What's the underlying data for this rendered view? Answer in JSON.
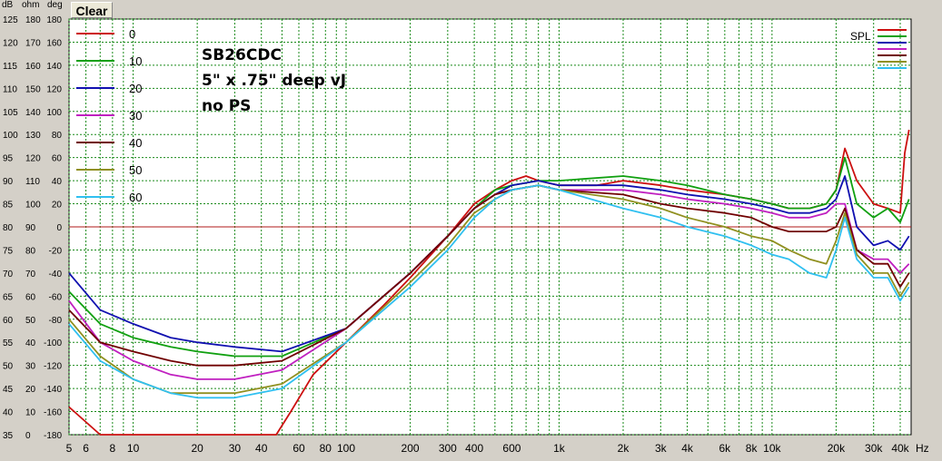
{
  "header": {
    "col_db": "dB",
    "col_ohm": "ohm",
    "col_deg": "deg",
    "clear_label": "Clear"
  },
  "annotation": [
    "SB26CDC",
    "5\" x .75\" deep vJ",
    "no PS"
  ],
  "spl_label": "SPL",
  "chart_data": {
    "type": "line",
    "xscale": "log",
    "xlim": [
      5,
      45000
    ],
    "ylim": [
      35,
      125
    ],
    "y2lim": [
      0,
      180
    ],
    "y3lim": [
      -180,
      180
    ],
    "grid": true,
    "legend_position": "top-left",
    "yticks_db": [
      "125",
      "120",
      "115",
      "110",
      "105",
      "100",
      "95",
      "90",
      "85",
      "80",
      "75",
      "70",
      "65",
      "60",
      "55",
      "50",
      "45",
      "40",
      "35"
    ],
    "yticks_ohm": [
      "180",
      "170",
      "160",
      "150",
      "140",
      "130",
      "120",
      "110",
      "100",
      "90",
      "80",
      "70",
      "60",
      "50",
      "40",
      "30",
      "20",
      "10",
      "0"
    ],
    "yticks_deg": [
      "180",
      "160",
      "140",
      "120",
      "100",
      "80",
      "60",
      "40",
      "20",
      "0",
      "-20",
      "-40",
      "-60",
      "-80",
      "-100",
      "-120",
      "-140",
      "-160",
      "-180"
    ],
    "xticks": [
      {
        "v": 5,
        "label": "5"
      },
      {
        "v": 6,
        "label": "6"
      },
      {
        "v": 8,
        "label": "8"
      },
      {
        "v": 10,
        "label": "10"
      },
      {
        "v": 20,
        "label": "20"
      },
      {
        "v": 30,
        "label": "30"
      },
      {
        "v": 40,
        "label": "40"
      },
      {
        "v": 60,
        "label": "60"
      },
      {
        "v": 80,
        "label": "80"
      },
      {
        "v": 100,
        "label": "100"
      },
      {
        "v": 200,
        "label": "200"
      },
      {
        "v": 300,
        "label": "300"
      },
      {
        "v": 400,
        "label": "400"
      },
      {
        "v": 600,
        "label": "600"
      },
      {
        "v": 1000,
        "label": "1k"
      },
      {
        "v": 2000,
        "label": "2k"
      },
      {
        "v": 3000,
        "label": "3k"
      },
      {
        "v": 4000,
        "label": "4k"
      },
      {
        "v": 6000,
        "label": "6k"
      },
      {
        "v": 8000,
        "label": "8k"
      },
      {
        "v": 10000,
        "label": "10k"
      },
      {
        "v": 20000,
        "label": "20k"
      },
      {
        "v": 30000,
        "label": "30k"
      },
      {
        "v": 40000,
        "label": "40k"
      }
    ],
    "x_unit": "Hz",
    "reference_line_db": 80,
    "series": [
      {
        "name": "0",
        "color": "#cc1010",
        "x": [
          5,
          7,
          10,
          20,
          30,
          47,
          55,
          70,
          100,
          150,
          200,
          300,
          400,
          500,
          600,
          700,
          800,
          1000,
          1500,
          2000,
          3000,
          4000,
          6000,
          8000,
          10000,
          12000,
          15000,
          18000,
          20000,
          22000,
          25000,
          30000,
          35000,
          40000,
          42000,
          44000
        ],
        "y": [
          41,
          35,
          35,
          35,
          35,
          35,
          40,
          48,
          55,
          63,
          69,
          78,
          85,
          88,
          90,
          91,
          90,
          89,
          89,
          90,
          89,
          88,
          87,
          86,
          85,
          84,
          84,
          85,
          88,
          97,
          90,
          85,
          84,
          83,
          96,
          101
        ]
      },
      {
        "name": "10",
        "color": "#10a010",
        "x": [
          5,
          7,
          10,
          15,
          20,
          30,
          50,
          100,
          200,
          300,
          400,
          500,
          600,
          800,
          1000,
          2000,
          3000,
          4000,
          6000,
          8000,
          10000,
          12000,
          15000,
          18000,
          20000,
          22000,
          25000,
          30000,
          35000,
          40000,
          44000
        ],
        "y": [
          66,
          59,
          56,
          54,
          53,
          52,
          52,
          58,
          70,
          78,
          84,
          88,
          89,
          90,
          90,
          91,
          90,
          89,
          87,
          86,
          85,
          84,
          84,
          85,
          88,
          95,
          85,
          82,
          84,
          81,
          86
        ]
      },
      {
        "name": "20",
        "color": "#1010b0",
        "x": [
          5,
          7,
          10,
          15,
          20,
          30,
          50,
          100,
          200,
          300,
          400,
          500,
          600,
          800,
          1000,
          2000,
          3000,
          4000,
          6000,
          8000,
          10000,
          12000,
          15000,
          18000,
          20000,
          22000,
          25000,
          30000,
          35000,
          40000,
          44000
        ],
        "y": [
          70,
          62,
          59,
          56,
          55,
          54,
          53,
          58,
          70,
          78,
          84,
          87,
          89,
          90,
          89,
          89,
          88,
          87,
          86,
          85,
          84,
          83,
          83,
          84,
          86,
          91,
          80,
          76,
          77,
          75,
          78
        ]
      },
      {
        "name": "30",
        "color": "#c020c0",
        "x": [
          5,
          7,
          10,
          15,
          20,
          30,
          50,
          100,
          200,
          300,
          400,
          500,
          600,
          800,
          1000,
          2000,
          3000,
          4000,
          6000,
          8000,
          10000,
          12000,
          15000,
          18000,
          20000,
          22000,
          25000,
          30000,
          35000,
          40000,
          44000
        ],
        "y": [
          64,
          55,
          51,
          48,
          47,
          47,
          49,
          58,
          70,
          78,
          84,
          87,
          88,
          89,
          88,
          88,
          87,
          86,
          85,
          84,
          83,
          82,
          82,
          83,
          85,
          85,
          75,
          73,
          73,
          70,
          72
        ]
      },
      {
        "name": "40",
        "color": "#700000",
        "x": [
          5,
          7,
          10,
          15,
          20,
          30,
          50,
          100,
          200,
          300,
          400,
          500,
          600,
          800,
          1000,
          2000,
          3000,
          4000,
          6000,
          8000,
          10000,
          12000,
          15000,
          18000,
          20000,
          22000,
          25000,
          30000,
          35000,
          40000,
          44000
        ],
        "y": [
          62,
          55,
          53,
          51,
          50,
          50,
          51,
          58,
          70,
          78,
          84,
          87,
          88,
          89,
          88,
          87,
          85,
          84,
          83,
          82,
          80,
          79,
          79,
          79,
          80,
          84,
          75,
          72,
          72,
          67,
          70
        ]
      },
      {
        "name": "50",
        "color": "#909020",
        "x": [
          5,
          7,
          10,
          15,
          20,
          30,
          50,
          100,
          200,
          300,
          400,
          500,
          600,
          800,
          1000,
          2000,
          3000,
          4000,
          6000,
          8000,
          10000,
          12000,
          15000,
          18000,
          20000,
          22000,
          25000,
          30000,
          35000,
          40000,
          44000
        ],
        "y": [
          60,
          52,
          47,
          44,
          44,
          44,
          46,
          55,
          68,
          76,
          83,
          86,
          88,
          89,
          88,
          86,
          84,
          82,
          80,
          78,
          77,
          75,
          73,
          72,
          77,
          83,
          74,
          70,
          70,
          65,
          68
        ]
      },
      {
        "name": "60",
        "color": "#30c0f0",
        "x": [
          5,
          7,
          10,
          15,
          20,
          30,
          50,
          100,
          200,
          300,
          400,
          500,
          600,
          800,
          1000,
          2000,
          3000,
          4000,
          6000,
          8000,
          10000,
          12000,
          15000,
          18000,
          20000,
          22000,
          25000,
          30000,
          35000,
          40000,
          44000
        ],
        "y": [
          59,
          51,
          47,
          44,
          43,
          43,
          45,
          55,
          67,
          75,
          82,
          86,
          88,
          89,
          88,
          84,
          82,
          80,
          78,
          76,
          74,
          73,
          70,
          69,
          75,
          82,
          73,
          69,
          69,
          64,
          67
        ]
      }
    ]
  }
}
